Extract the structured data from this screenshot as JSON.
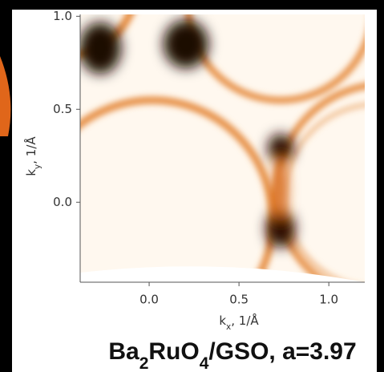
{
  "chart_data": {
    "type": "image",
    "title": [
      {
        "text": "Ba"
      },
      {
        "text": "2",
        "sub": true
      },
      {
        "text": "RuO"
      },
      {
        "text": "4",
        "sub": true
      },
      {
        "text": "/GSO, a=3.97"
      }
    ],
    "x_label": [
      {
        "text": "k"
      },
      {
        "text": "x",
        "sub": true
      },
      {
        "text": ", 1/Å"
      }
    ],
    "y_label": [
      {
        "text": "k"
      },
      {
        "text": "y",
        "sub": true
      },
      {
        "text": ", 1/Å"
      }
    ],
    "xlim": [
      -0.384,
      1.2
    ],
    "ylim": [
      -0.43,
      1.01
    ],
    "xticks": [
      {
        "value": 0,
        "label": "0.0"
      },
      0.5,
      {
        "value": 1,
        "label": "1.0"
      }
    ],
    "yticks": [
      {
        "value": 0,
        "label": "0.0"
      },
      0.5,
      {
        "value": 1,
        "label": "1.0"
      }
    ]
  }
}
